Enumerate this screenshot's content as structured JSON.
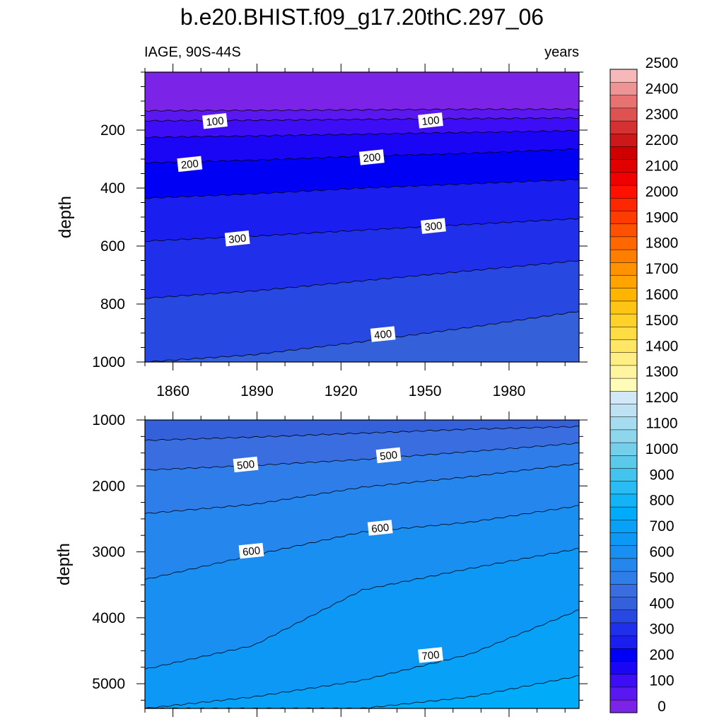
{
  "figure": {
    "title": "b.e20.BHIST.f09_g17.20thC.297_06",
    "subtitle_left": "IAGE, 90S-44S",
    "subtitle_right": "years"
  },
  "chart_data": [
    {
      "type": "contour",
      "panel": "top",
      "ylabel": "depth",
      "xlabel": "",
      "xlim": [
        1850,
        2005
      ],
      "ylim": [
        1000,
        0
      ],
      "x_ticks": [
        1860,
        1890,
        1920,
        1950,
        1980
      ],
      "y_ticks": [
        200,
        400,
        600,
        800,
        1000
      ],
      "contour_levels": [
        {
          "value": 50,
          "depths": [
            133,
            132,
            130,
            128,
            128
          ]
        },
        {
          "value": 100,
          "depths": [
            168,
            166,
            163,
            160,
            158
          ]
        },
        {
          "value": 150,
          "depths": [
            225,
            220,
            214,
            208,
            202
          ]
        },
        {
          "value": 200,
          "depths": [
            313,
            304,
            290,
            280,
            265
          ]
        },
        {
          "value": 250,
          "depths": [
            435,
            420,
            400,
            385,
            370
          ]
        },
        {
          "value": 300,
          "depths": [
            583,
            566,
            545,
            525,
            505
          ]
        },
        {
          "value": 350,
          "depths": [
            780,
            755,
            720,
            685,
            650
          ]
        },
        {
          "value": 400,
          "depths": [
            1000,
            975,
            930,
            880,
            825
          ]
        }
      ],
      "contour_labels": [
        {
          "value": "100",
          "x": 1875,
          "depth": 170
        },
        {
          "value": "100",
          "x": 1952,
          "depth": 168
        },
        {
          "value": "200",
          "x": 1866,
          "depth": 318
        },
        {
          "value": "200",
          "x": 1931,
          "depth": 295
        },
        {
          "value": "300",
          "x": 1883,
          "depth": 575
        },
        {
          "value": "300",
          "x": 1953,
          "depth": 532
        },
        {
          "value": "400",
          "x": 1935,
          "depth": 905
        }
      ]
    },
    {
      "type": "contour",
      "panel": "bottom",
      "ylabel": "depth",
      "xlabel": "",
      "xlim": [
        1850,
        2005
      ],
      "ylim": [
        5375,
        1000
      ],
      "x_ticks": [
        1860,
        1890,
        1920,
        1950,
        1980
      ],
      "y_ticks": [
        1000,
        2000,
        3000,
        4000,
        5000
      ],
      "contour_levels": [
        {
          "value": 450,
          "depths": [
            1310,
            1260,
            1200,
            1140,
            1100
          ]
        },
        {
          "value": 500,
          "depths": [
            1760,
            1690,
            1600,
            1480,
            1350
          ]
        },
        {
          "value": 550,
          "depths": [
            2420,
            2280,
            2020,
            1860,
            1660
          ]
        },
        {
          "value": 600,
          "depths": [
            3420,
            3050,
            2700,
            2550,
            2300
          ]
        },
        {
          "value": 650,
          "depths": [
            4780,
            4420,
            3580,
            3250,
            2950
          ]
        },
        {
          "value": 700,
          "depths": [
            5375,
            5200,
            4950,
            4550,
            3880
          ]
        },
        {
          "value": 750,
          "depths": [
            5375,
            5375,
            5375,
            5200,
            4880
          ]
        }
      ],
      "contour_labels": [
        {
          "value": "500",
          "x": 1886,
          "depth": 1680
        },
        {
          "value": "500",
          "x": 1937,
          "depth": 1540
        },
        {
          "value": "600",
          "x": 1934,
          "depth": 2640
        },
        {
          "value": "600",
          "x": 1888,
          "depth": 2990
        },
        {
          "value": "700",
          "x": 1952,
          "depth": 4570
        }
      ]
    }
  ],
  "colorbar": {
    "tick_labels": [
      "0",
      "100",
      "200",
      "300",
      "400",
      "500",
      "600",
      "700",
      "800",
      "900",
      "1000",
      "1100",
      "1200",
      "1300",
      "1400",
      "1500",
      "1600",
      "1700",
      "1800",
      "1900",
      "2000",
      "2100",
      "2200",
      "2300",
      "2400",
      "2500"
    ],
    "colors": [
      "#7b24e8",
      "#5a18f0",
      "#3d0df5",
      "#1a06f5",
      "#0000f5",
      "#1a1ff0",
      "#2030ea",
      "#2848e2",
      "#3460da",
      "#3a6ee0",
      "#2f7de8",
      "#2586ee",
      "#1a8ff2",
      "#0e98f6",
      "#07a2f8",
      "#00abfa",
      "#12b4f6",
      "#28bcf2",
      "#42c4ee",
      "#5ac9ea",
      "#74cfea",
      "#8ed6ec",
      "#a6dcef",
      "#bee2f2",
      "#d2e8f6",
      "#fffcb8",
      "#fff4a0",
      "#ffee84",
      "#ffe664",
      "#ffdc44",
      "#ffd22a",
      "#ffc414",
      "#ffb400",
      "#ffa400",
      "#ff9200",
      "#ff7e00",
      "#ff6800",
      "#ff5200",
      "#ff3c00",
      "#ff2600",
      "#ff1000",
      "#f00000",
      "#e00000",
      "#d00000",
      "#cc1818",
      "#d43232",
      "#de5252",
      "#e67272",
      "#ee9494",
      "#f6b8b8"
    ]
  }
}
